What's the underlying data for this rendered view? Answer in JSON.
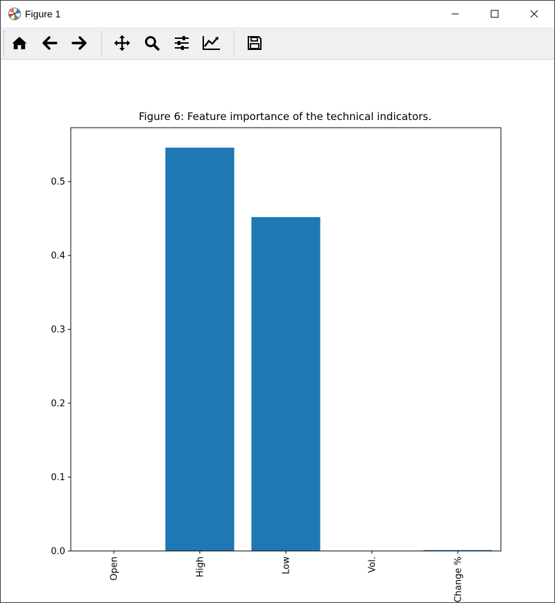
{
  "window": {
    "title": "Figure 1",
    "controls": [
      "minimize",
      "maximize",
      "close"
    ]
  },
  "toolbar": {
    "tools": [
      {
        "name": "home",
        "icon": "home-icon"
      },
      {
        "name": "back",
        "icon": "arrow-left-icon"
      },
      {
        "name": "forward",
        "icon": "arrow-right-icon"
      },
      {
        "name": "pan",
        "icon": "move-icon"
      },
      {
        "name": "zoom",
        "icon": "magnifier-icon"
      },
      {
        "name": "subplots",
        "icon": "sliders-icon"
      },
      {
        "name": "edit-axis",
        "icon": "line-chart-icon"
      },
      {
        "name": "save",
        "icon": "floppy-disk-icon"
      }
    ]
  },
  "chart_data": {
    "type": "bar",
    "title": "Figure 6: Feature importance of the technical indicators.",
    "categories": [
      "Open",
      "High",
      "Low",
      "Vol.",
      "Change %"
    ],
    "values": [
      0.0,
      0.546,
      0.452,
      0.0,
      0.0012
    ],
    "ylim": [
      0,
      0.573
    ],
    "yticks": [
      0.0,
      0.1,
      0.2,
      0.3,
      0.4,
      0.5
    ],
    "ytick_labels": [
      "0.0",
      "0.1",
      "0.2",
      "0.3",
      "0.4",
      "0.5"
    ],
    "xlabel": "",
    "ylabel": "",
    "bar_color": "#1f77b4",
    "grid": false,
    "xtick_rotation": 90
  }
}
